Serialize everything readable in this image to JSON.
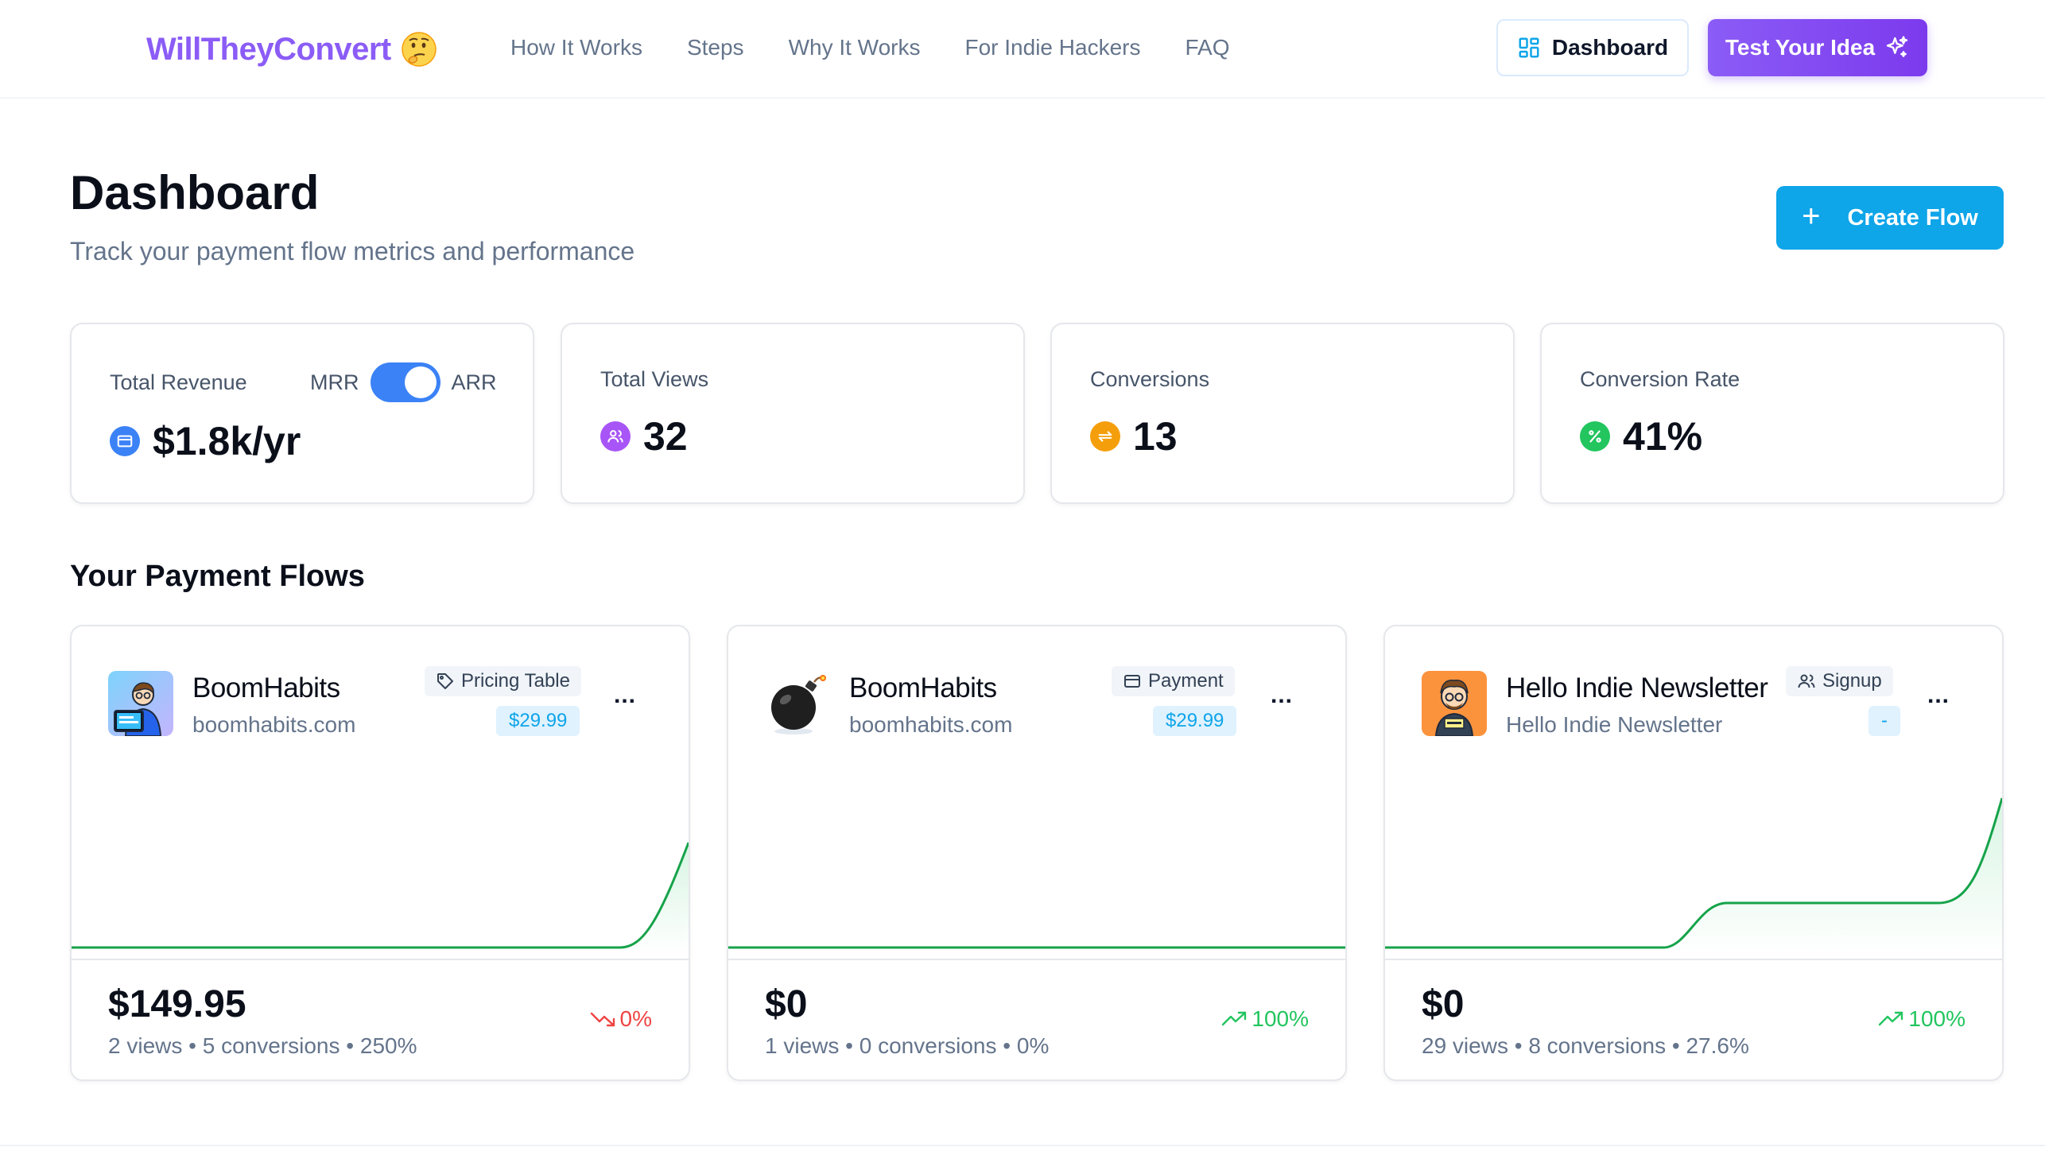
{
  "header": {
    "logo_text": "WillTheyConvert",
    "nav": [
      "How It Works",
      "Steps",
      "Why It Works",
      "For Indie Hackers",
      "FAQ"
    ],
    "dashboard_button": "Dashboard",
    "test_button": "Test Your Idea"
  },
  "page": {
    "title": "Dashboard",
    "subtitle": "Track your payment flow metrics and performance",
    "create_button": "Create Flow",
    "section_title": "Your Payment Flows"
  },
  "stats": {
    "revenue": {
      "label": "Total Revenue",
      "toggle_left": "MRR",
      "toggle_right": "ARR",
      "toggle_on": true,
      "value": "$1.8k/yr",
      "icon": "credit-card-icon",
      "color": "#3b82f6"
    },
    "views": {
      "label": "Total Views",
      "value": "32",
      "icon": "users-icon",
      "color": "#a855f7"
    },
    "conversions": {
      "label": "Conversions",
      "value": "13",
      "icon": "repeat-icon",
      "color": "#f59e0b"
    },
    "rate": {
      "label": "Conversion Rate",
      "value": "41%",
      "icon": "percent-icon",
      "color": "#22c55e"
    }
  },
  "flows": [
    {
      "name": "BoomHabits",
      "domain": "boomhabits.com",
      "type": "Pricing Table",
      "type_icon": "tag-icon",
      "price": "$29.99",
      "revenue": "$149.95",
      "views": "2 views",
      "conversions": "5 conversions",
      "rate": "250%",
      "trend": "0%",
      "trend_dir": "down",
      "avatar": "developer-avatar-icon"
    },
    {
      "name": "BoomHabits",
      "domain": "boomhabits.com",
      "type": "Payment",
      "type_icon": "credit-card-icon",
      "price": "$29.99",
      "revenue": "$0",
      "views": "1 views",
      "conversions": "0 conversions",
      "rate": "0%",
      "trend": "100%",
      "trend_dir": "up",
      "avatar": "bomb-icon"
    },
    {
      "name": "Hello Indie Newsletter",
      "domain": "Hello Indie Newsletter",
      "type": "Signup",
      "type_icon": "users-icon",
      "price": "-",
      "revenue": "$0",
      "views": "29 views",
      "conversions": "8 conversions",
      "rate": "27.6%",
      "trend": "100%",
      "trend_dir": "up",
      "avatar": "hello-avatar-icon"
    }
  ],
  "separator": "•",
  "menu_glyph": "...",
  "plus_glyph": "+"
}
